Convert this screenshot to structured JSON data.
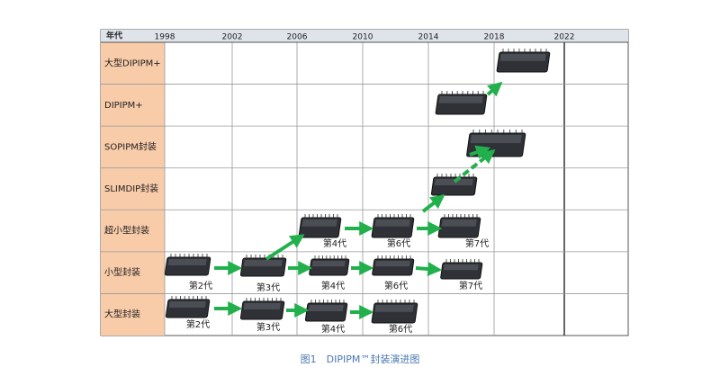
{
  "header": {
    "corner": "年代",
    "years": [
      "1998",
      "2002",
      "2006",
      "2010",
      "2014",
      "2018",
      "2022"
    ]
  },
  "rows": [
    "大型DIPIPM+",
    "DIPIPM+",
    "SOPIPM封装",
    "SLIMDIP封装",
    "超小型封装",
    "小型封装",
    "大型封装"
  ],
  "generations": [
    "第4代",
    "第6代",
    "第7代",
    "第2代",
    "第3代",
    "第4代",
    "第6代",
    "第7代",
    "第2代",
    "第3代",
    "第4代",
    "第6代"
  ],
  "caption": "图1　DIPIPM™封装演进图"
}
